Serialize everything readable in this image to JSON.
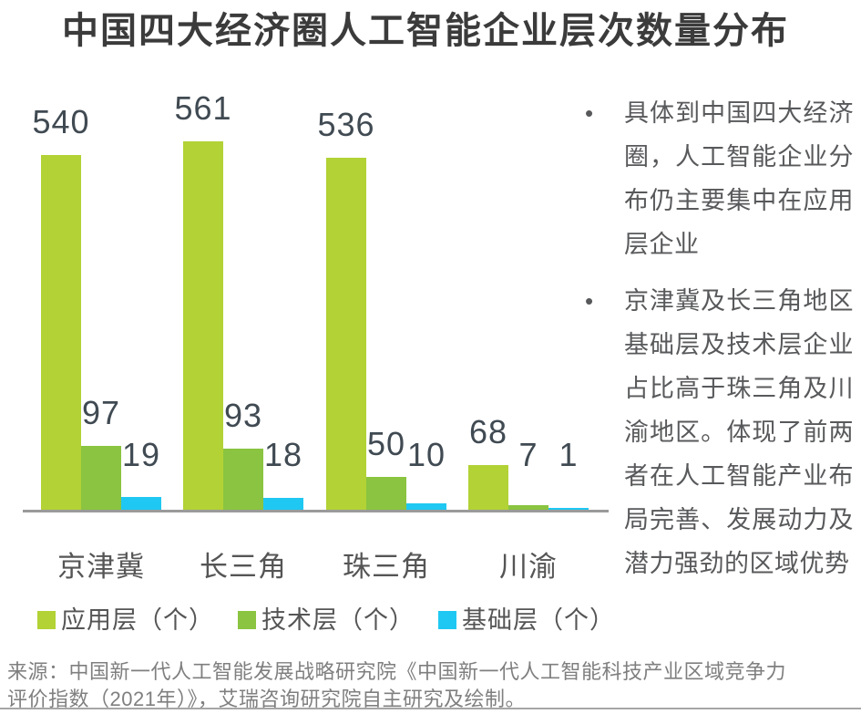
{
  "title": "中国四大经济圈人工智能企业层次数量分布",
  "chart_data": {
    "type": "bar",
    "categories": [
      "京津冀",
      "长三角",
      "珠三角",
      "川渝"
    ],
    "series": [
      {
        "name": "应用层（个）",
        "color": "#B2D235",
        "values": [
          540,
          561,
          536,
          68
        ]
      },
      {
        "name": "技术层（个）",
        "color": "#8AC440",
        "values": [
          97,
          93,
          50,
          7
        ]
      },
      {
        "name": "基础层（个）",
        "color": "#1FC8F2",
        "values": [
          19,
          18,
          10,
          1
        ]
      }
    ],
    "title": "中国四大经济圈人工智能企业层次数量分布",
    "xlabel": "",
    "ylabel": "",
    "ylim": [
      0,
      600
    ],
    "grid": false,
    "value_labels": true,
    "legend_position": "bottom"
  },
  "insights": [
    "具体到中国四大经济圈，人工智能企业分布仍主要集中在应用层企业",
    "京津冀及长三角地区基础层及技术层企业占比高于珠三角及川渝地区。体现了前两者在人工智能产业布局完善、发展动力及潜力强劲的区域优势"
  ],
  "source": "来源：中国新一代人工智能发展战略研究院《中国新一代人工智能科技产业区域竞争力评价指数（2021年）》，艾瑞咨询研究院自主研究及绘制。",
  "bullet_glyph": "•",
  "colors": {
    "title": "#3b3b3b",
    "data_label": "#404a52",
    "axis_line": "#9a9a9a",
    "axis_label": "#555555",
    "note_text": "#58595b",
    "source_text": "#7f7f7f",
    "bottom_rule": "#a6a6a6"
  }
}
